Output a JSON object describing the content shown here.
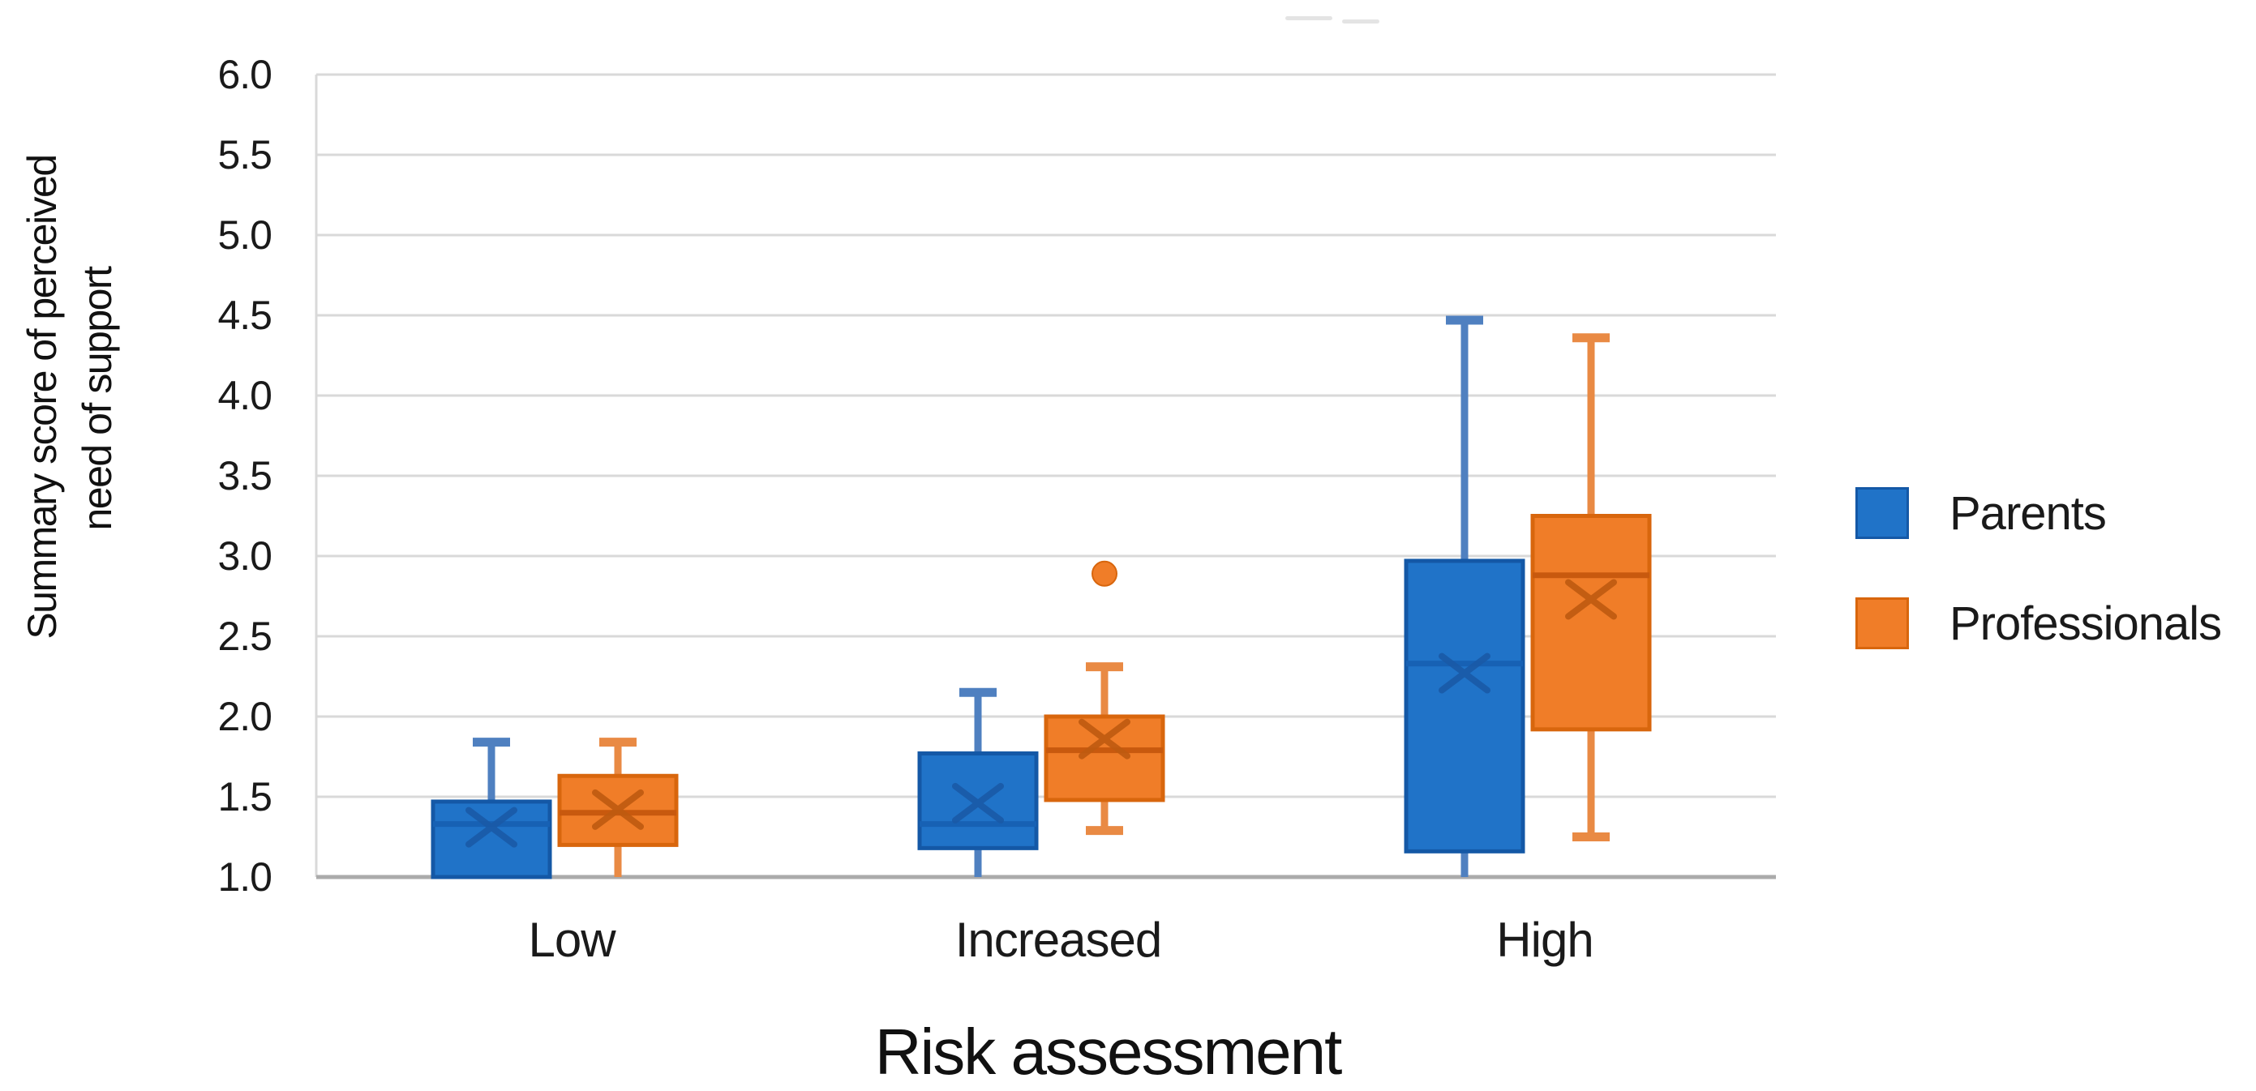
{
  "figure": {
    "y_axis": {
      "title_line1": "Summary  score of perceived",
      "title_line2": "need of support",
      "tick_labels": [
        "6.0",
        "5.5",
        "5.0",
        "4.5",
        "4.0",
        "3.5",
        "3.0",
        "2.5",
        "2.0",
        "1.5",
        "1.0"
      ]
    },
    "x_axis": {
      "category_labels": [
        "Low",
        "Increased",
        "High"
      ]
    },
    "legend": {
      "items": [
        "Parents",
        "Professionals"
      ]
    },
    "styles": {
      "gridline_color": "#D9D9D9",
      "axis_line_color": "#ABABAB",
      "plot_border_color": "#D9D9D9",
      "text_color": "#1A1A1A",
      "background": "#FFFFFF"
    }
  },
  "chart_data": {
    "type": "boxplot",
    "title": "",
    "categories": [
      "Low",
      "Increased",
      "High"
    ],
    "xlabel": "Risk assessment",
    "ylabel": "Summary  score of perceived need of support",
    "ylim": [
      1.0,
      6.0
    ],
    "ytick_step": 0.5,
    "grid": true,
    "legend_position": "right",
    "series": [
      {
        "name": "Parents",
        "color": "#2073C8",
        "border_color": "#1458A6",
        "median_color": "#1761B4",
        "mean_marker_color": "#1A5AA6",
        "whisker_color": "#4F80C0",
        "boxes": [
          {
            "category": "Low",
            "whisker_low": 1.0,
            "q1": 1.0,
            "median": 1.33,
            "mean": 1.31,
            "q3": 1.47,
            "whisker_high": 1.84,
            "lower_cap": false,
            "upper_cap": true,
            "outliers": []
          },
          {
            "category": "Increased",
            "whisker_low": 1.0,
            "q1": 1.18,
            "median": 1.33,
            "mean": 1.46,
            "q3": 1.77,
            "whisker_high": 2.15,
            "lower_cap": false,
            "upper_cap": true,
            "outliers": []
          },
          {
            "category": "High",
            "whisker_low": 1.0,
            "q1": 1.16,
            "median": 2.33,
            "mean": 2.27,
            "q3": 2.97,
            "whisker_high": 4.47,
            "lower_cap": false,
            "upper_cap": true,
            "outliers": []
          }
        ]
      },
      {
        "name": "Professionals",
        "color": "#F07D28",
        "border_color": "#D8660D",
        "median_color": "#C8590E",
        "mean_marker_color": "#BE5A10",
        "whisker_color": "#E98A44",
        "boxes": [
          {
            "category": "Low",
            "whisker_low": 1.0,
            "q1": 1.2,
            "median": 1.4,
            "mean": 1.42,
            "q3": 1.63,
            "whisker_high": 1.84,
            "lower_cap": false,
            "upper_cap": true,
            "outliers": []
          },
          {
            "category": "Increased",
            "whisker_low": 1.29,
            "q1": 1.48,
            "median": 1.79,
            "mean": 1.86,
            "q3": 2.0,
            "whisker_high": 2.31,
            "lower_cap": true,
            "upper_cap": true,
            "outliers": [
              2.89
            ]
          },
          {
            "category": "High",
            "whisker_low": 1.25,
            "q1": 1.92,
            "median": 2.88,
            "mean": 2.73,
            "q3": 3.25,
            "whisker_high": 4.36,
            "lower_cap": true,
            "upper_cap": true,
            "outliers": []
          }
        ]
      }
    ]
  }
}
